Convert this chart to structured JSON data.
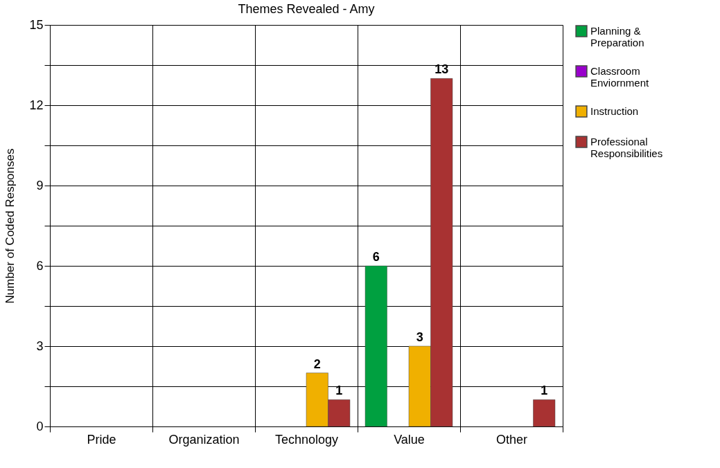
{
  "chart_data": {
    "type": "bar",
    "title": "Themes Revealed - Amy",
    "ylabel": "Number of Coded Responses",
    "categories": [
      "Pride",
      "Organization",
      "Technology",
      "Value",
      "Other"
    ],
    "series": [
      {
        "name": "Planning & Preparation",
        "color": "#00a040",
        "values": [
          null,
          null,
          null,
          6,
          null
        ]
      },
      {
        "name": "Classroom Enviornment",
        "color": "#9900cc",
        "values": [
          null,
          null,
          null,
          null,
          null
        ]
      },
      {
        "name": "Instruction",
        "color": "#f0b000",
        "values": [
          null,
          null,
          2,
          3,
          null
        ]
      },
      {
        "name": "Professional Responsibilities",
        "color": "#a83232",
        "values": [
          null,
          null,
          1,
          13,
          1
        ]
      }
    ],
    "ylim": [
      0,
      15
    ],
    "yticks": [
      0,
      {
        "value": 1.5,
        "label": null
      },
      3,
      {
        "value": 4.5,
        "label": null
      },
      6,
      {
        "value": 7.5,
        "label": null
      },
      9,
      {
        "value": 10.5,
        "label": null
      },
      12,
      {
        "value": 13.5,
        "label": null
      },
      15
    ],
    "grid": true,
    "legend": "right",
    "data_labels": true
  }
}
